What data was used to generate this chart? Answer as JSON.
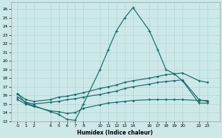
{
  "xlabel": "Humidex (Indice chaleur)",
  "bg_color": "#cce8e8",
  "grid_color": "#b0d4d4",
  "line_color": "#1a6b6b",
  "xlim": [
    -0.8,
    24.5
  ],
  "ylim": [
    13,
    26.8
  ],
  "xticks": [
    0,
    1,
    2,
    4,
    5,
    6,
    7,
    8,
    10,
    11,
    12,
    13,
    14,
    16,
    17,
    18,
    19,
    20,
    22,
    23
  ],
  "yticks": [
    13,
    14,
    15,
    16,
    17,
    18,
    19,
    20,
    21,
    22,
    23,
    24,
    25,
    26
  ],
  "line1_x": [
    0,
    1,
    2,
    4,
    5,
    6,
    7,
    8,
    10,
    11,
    12,
    13,
    14,
    16,
    17,
    18,
    19,
    20,
    22,
    23
  ],
  "line1_y": [
    16.2,
    15.1,
    14.8,
    14.1,
    13.8,
    13.2,
    13.1,
    15.0,
    19.0,
    21.3,
    23.5,
    25.0,
    26.2,
    23.5,
    21.3,
    19.0,
    18.5,
    17.7,
    15.1,
    15.1
  ],
  "line2_x": [
    0,
    1,
    2,
    4,
    5,
    6,
    7,
    8,
    10,
    11,
    12,
    13,
    14,
    16,
    17,
    18,
    19,
    20,
    22,
    23
  ],
  "line2_y": [
    16.2,
    15.5,
    15.3,
    15.5,
    15.8,
    15.9,
    16.1,
    16.3,
    16.8,
    17.0,
    17.2,
    17.5,
    17.7,
    18.0,
    18.2,
    18.4,
    18.5,
    18.6,
    17.7,
    17.5
  ],
  "line3_x": [
    0,
    1,
    2,
    4,
    5,
    6,
    7,
    8,
    10,
    11,
    12,
    13,
    14,
    16,
    17,
    18,
    19,
    20,
    22,
    23
  ],
  "line3_y": [
    15.8,
    15.2,
    15.0,
    15.2,
    15.3,
    15.5,
    15.6,
    15.8,
    16.1,
    16.3,
    16.5,
    16.8,
    17.0,
    17.3,
    17.5,
    17.6,
    17.7,
    17.8,
    15.5,
    15.3
  ],
  "line4_x": [
    0,
    1,
    2,
    4,
    5,
    6,
    7,
    8,
    10,
    11,
    12,
    13,
    14,
    16,
    17,
    18,
    19,
    20,
    22,
    23
  ],
  "line4_y": [
    15.5,
    15.0,
    14.7,
    14.2,
    14.1,
    13.9,
    14.0,
    14.5,
    14.9,
    15.1,
    15.2,
    15.3,
    15.4,
    15.5,
    15.5,
    15.5,
    15.5,
    15.5,
    15.4,
    15.4
  ]
}
